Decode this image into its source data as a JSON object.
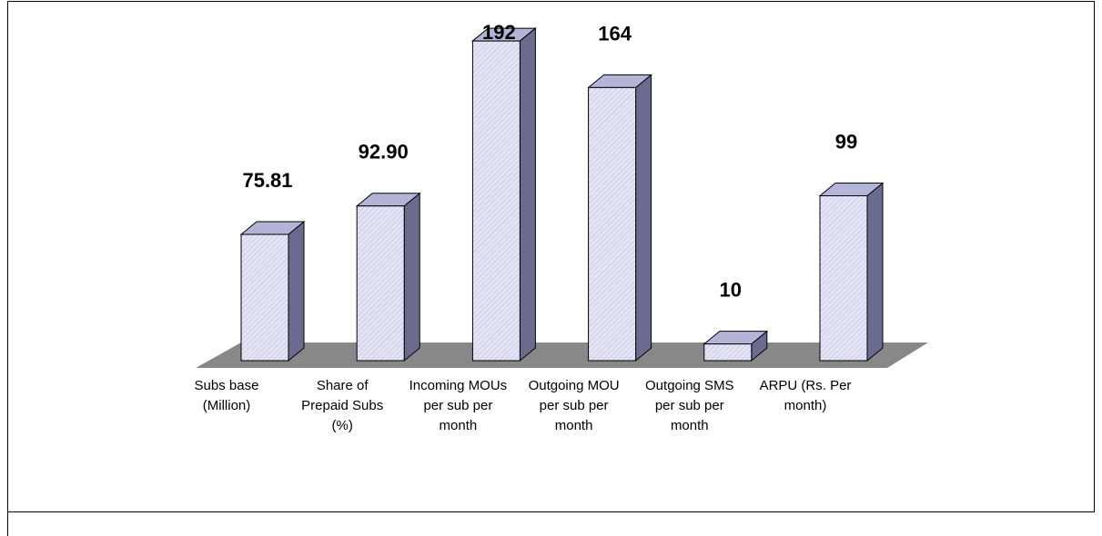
{
  "chart_data": {
    "type": "bar3d",
    "categories": [
      "Subs base (Million)",
      "Share of Prepaid Subs (%)",
      "Incoming MOUs per sub per month",
      "Outgoing MOU per sub per month",
      "Outgoing SMS per sub per month",
      "ARPU (Rs. Per month)"
    ],
    "values": [
      75.81,
      92.9,
      192,
      164,
      10,
      99
    ],
    "value_labels": [
      "75.81",
      "92.90",
      "192",
      "164",
      "10",
      "99"
    ],
    "color": "#d9d9f2"
  }
}
